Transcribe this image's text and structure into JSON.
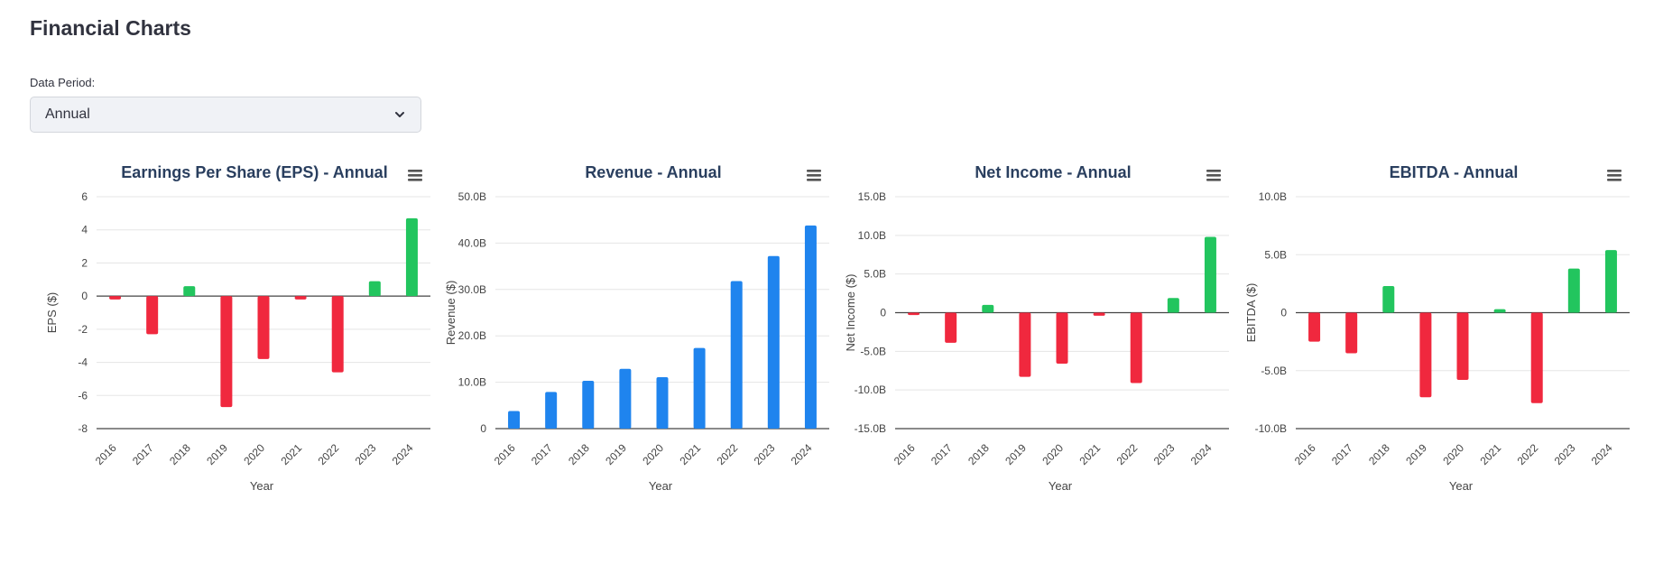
{
  "page": {
    "title": "Financial Charts"
  },
  "period": {
    "label": "Data Period:",
    "selected": "Annual"
  },
  "colors": {
    "positive": "#22c55e",
    "negative": "#f0283e",
    "neutral": "#1f84ee",
    "grid": "#e5e5e5",
    "zero_line": "#444444"
  },
  "icons": {
    "select": "chevron-down-icon",
    "chart_menu": "hamburger-menu-icon"
  },
  "chart_data": [
    {
      "type": "bar",
      "title": "Earnings Per Share (EPS) - Annual",
      "xlabel": "Year",
      "ylabel": "EPS ($)",
      "categories": [
        "2016",
        "2017",
        "2018",
        "2019",
        "2020",
        "2021",
        "2022",
        "2023",
        "2024"
      ],
      "values": [
        -0.2,
        -2.3,
        0.6,
        -6.7,
        -3.8,
        -0.2,
        -4.6,
        0.9,
        4.7
      ],
      "ylim": [
        -8,
        6
      ],
      "yticks": [
        -8,
        -6,
        -4,
        -2,
        0,
        2,
        4,
        6
      ],
      "ytick_labels": [
        "-8",
        "-6",
        "-4",
        "-2",
        "0",
        "2",
        "4",
        "6"
      ],
      "color_mode": "sign",
      "grid": true
    },
    {
      "type": "bar",
      "title": "Revenue - Annual",
      "xlabel": "Year",
      "ylabel": "Revenue ($)",
      "categories": [
        "2016",
        "2017",
        "2018",
        "2019",
        "2020",
        "2021",
        "2022",
        "2023",
        "2024"
      ],
      "values": [
        3.8,
        7.9,
        10.3,
        12.9,
        11.1,
        17.4,
        31.8,
        37.2,
        43.8
      ],
      "units": "billions",
      "ylim": [
        0,
        50
      ],
      "yticks": [
        0,
        10,
        20,
        30,
        40,
        50
      ],
      "ytick_labels": [
        "0",
        "10.0B",
        "20.0B",
        "30.0B",
        "40.0B",
        "50.0B"
      ],
      "color_mode": "neutral",
      "grid": true
    },
    {
      "type": "bar",
      "title": "Net Income - Annual",
      "xlabel": "Year",
      "ylabel": "Net Income ($)",
      "categories": [
        "2016",
        "2017",
        "2018",
        "2019",
        "2020",
        "2021",
        "2022",
        "2023",
        "2024"
      ],
      "values": [
        -0.3,
        -3.9,
        1.0,
        -8.3,
        -6.6,
        -0.4,
        -9.1,
        1.9,
        9.8
      ],
      "units": "billions",
      "ylim": [
        -15,
        15
      ],
      "yticks": [
        -15,
        -10,
        -5,
        0,
        5,
        10,
        15
      ],
      "ytick_labels": [
        "-15.0B",
        "-10.0B",
        "-5.0B",
        "0",
        "5.0B",
        "10.0B",
        "15.0B"
      ],
      "color_mode": "sign",
      "grid": true
    },
    {
      "type": "bar",
      "title": "EBITDA - Annual",
      "xlabel": "Year",
      "ylabel": "EBITDA ($)",
      "categories": [
        "2016",
        "2017",
        "2018",
        "2019",
        "2020",
        "2021",
        "2022",
        "2023",
        "2024"
      ],
      "values": [
        -2.5,
        -3.5,
        2.3,
        -7.3,
        -5.8,
        0.3,
        -7.8,
        3.8,
        5.4
      ],
      "units": "billions",
      "ylim": [
        -10,
        10
      ],
      "yticks": [
        -10,
        -5,
        0,
        5,
        10
      ],
      "ytick_labels": [
        "-10.0B",
        "-5.0B",
        "0",
        "5.0B",
        "10.0B"
      ],
      "color_mode": "sign",
      "grid": true
    }
  ]
}
